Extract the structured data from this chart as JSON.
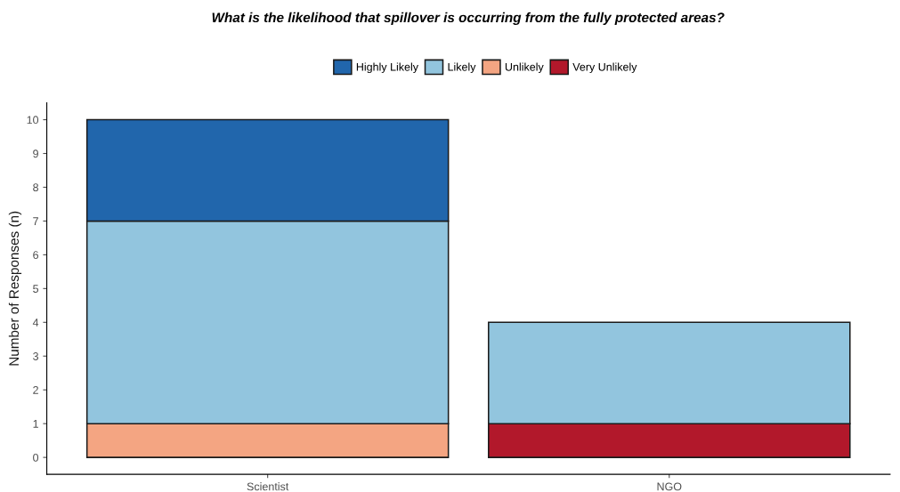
{
  "chart_data": {
    "type": "bar",
    "title": "What is the likelihood that spillover is occurring from the fully protected areas?",
    "ylabel": "Number of Responses (n)",
    "categories": [
      "Scientist",
      "NGO"
    ],
    "stacked": true,
    "series": [
      {
        "name": "Very Unlikely",
        "color": "#b2182b",
        "values": [
          null,
          1
        ]
      },
      {
        "name": "Unlikely",
        "color": "#f4a582",
        "values": [
          1,
          null
        ]
      },
      {
        "name": "Likely",
        "color": "#92c5de",
        "values": [
          6,
          3
        ]
      },
      {
        "name": "Highly Likely",
        "color": "#2166ac",
        "values": [
          3,
          null
        ]
      }
    ],
    "ylim": [
      -0.5,
      10.5
    ],
    "yticks": [
      0,
      1,
      2,
      3,
      4,
      5,
      6,
      7,
      8,
      9,
      10
    ],
    "grid": false,
    "legend": "top"
  }
}
